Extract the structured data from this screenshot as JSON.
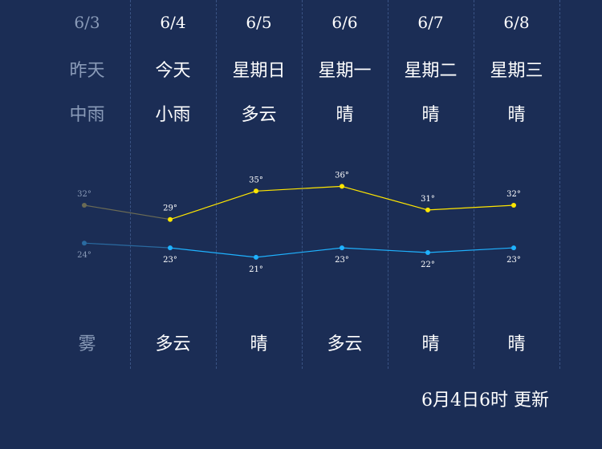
{
  "days": [
    {
      "date": "6/3",
      "name": "昨天",
      "day_weather": "中雨",
      "night_weather": "雾",
      "high": "32°",
      "low": "24°",
      "past": true
    },
    {
      "date": "6/4",
      "name": "今天",
      "day_weather": "小雨",
      "night_weather": "多云",
      "high": "29°",
      "low": "23°",
      "past": false
    },
    {
      "date": "6/5",
      "name": "星期日",
      "day_weather": "多云",
      "night_weather": "晴",
      "high": "35°",
      "low": "21°",
      "past": false
    },
    {
      "date": "6/6",
      "name": "星期一",
      "day_weather": "晴",
      "night_weather": "多云",
      "high": "36°",
      "low": "23°",
      "past": false
    },
    {
      "date": "6/7",
      "name": "星期二",
      "day_weather": "晴",
      "night_weather": "晴",
      "high": "31°",
      "low": "22°",
      "past": false
    },
    {
      "date": "6/8",
      "name": "星期三",
      "day_weather": "晴",
      "night_weather": "晴",
      "high": "32°",
      "low": "23°",
      "past": false
    }
  ],
  "chart_data": {
    "type": "line",
    "categories": [
      "6/3",
      "6/4",
      "6/5",
      "6/6",
      "6/7",
      "6/8"
    ],
    "series": [
      {
        "values": [
          32,
          29,
          35,
          36,
          31,
          32
        ],
        "color": "#ffe600"
      },
      {
        "values": [
          24,
          23,
          21,
          23,
          22,
          23
        ],
        "color": "#1fb2ff"
      }
    ],
    "past_color_high": "#6b6b55",
    "past_color_low": "#2a6aa0"
  },
  "updated_label": "6月4日6时 更新"
}
